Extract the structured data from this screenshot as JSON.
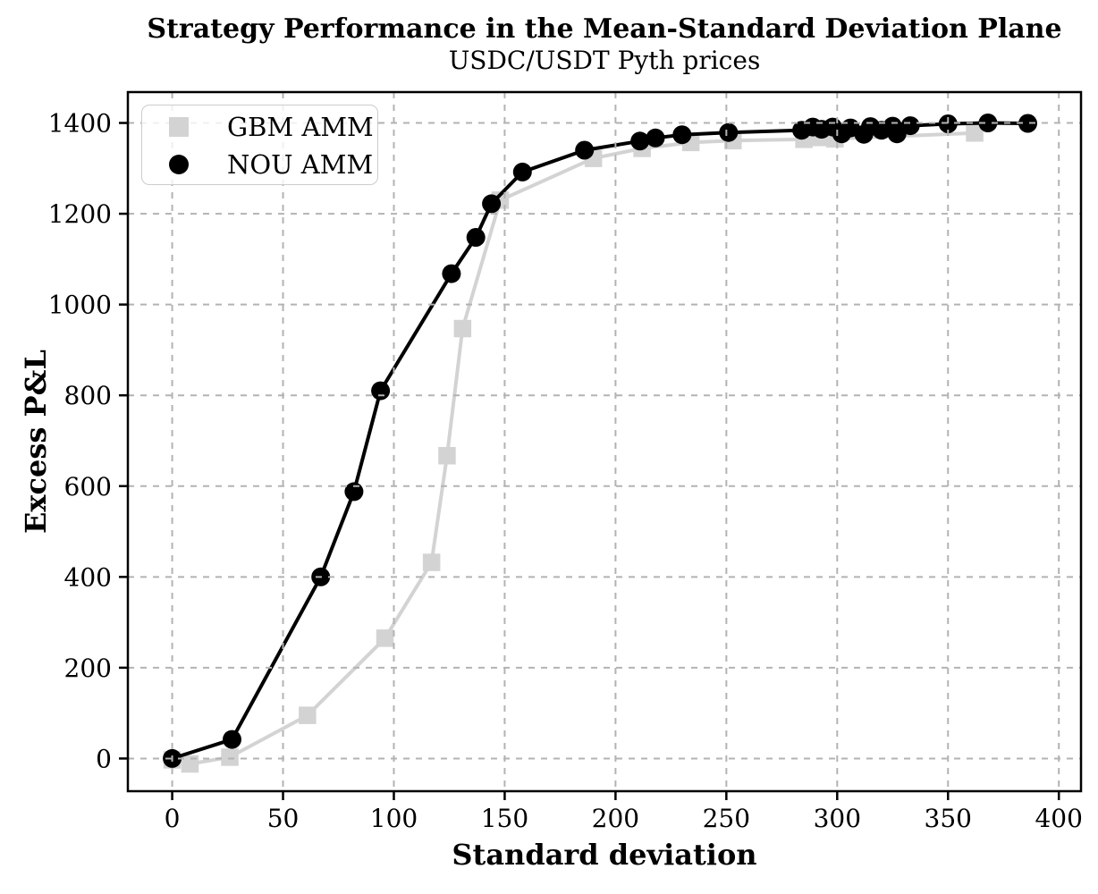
{
  "chart_data": {
    "type": "line",
    "title": "Strategy Performance in the Mean-Standard Deviation Plane",
    "subtitle": "USDC/USDT Pyth prices",
    "xlabel": "Standard deviation",
    "ylabel": "Excess P&L",
    "xlim": [
      -20,
      410
    ],
    "ylim": [
      -72,
      1468
    ],
    "x_ticks": [
      0,
      50,
      100,
      150,
      200,
      250,
      300,
      350,
      400
    ],
    "y_ticks": [
      0,
      200,
      400,
      600,
      800,
      1000,
      1200,
      1400
    ],
    "grid": true,
    "grid_style": "dashed",
    "grid_color": "#b3b3b3",
    "legend_position": "upper left",
    "series": [
      {
        "name": "GBM AMM",
        "marker": "square",
        "color": "#d3d3d3",
        "points": [
          [
            0,
            -3
          ],
          [
            8,
            -12
          ],
          [
            26,
            3
          ],
          [
            61,
            95
          ],
          [
            96,
            265
          ],
          [
            117,
            432
          ],
          [
            124,
            667
          ],
          [
            131,
            947
          ],
          [
            148,
            1230
          ],
          [
            190,
            1322
          ],
          [
            212,
            1344
          ],
          [
            234,
            1357
          ],
          [
            253,
            1361
          ],
          [
            285,
            1364
          ],
          [
            292,
            1368
          ],
          [
            299,
            1365
          ],
          [
            362,
            1378
          ]
        ]
      },
      {
        "name": "NOU AMM",
        "marker": "circle",
        "color": "#000000",
        "points": [
          [
            0,
            0
          ],
          [
            27,
            42
          ],
          [
            67,
            400
          ],
          [
            82,
            588
          ],
          [
            94,
            810
          ],
          [
            126,
            1068
          ],
          [
            137,
            1148
          ],
          [
            144,
            1222
          ],
          [
            158,
            1292
          ],
          [
            186,
            1340
          ],
          [
            211,
            1360
          ],
          [
            218,
            1367
          ],
          [
            230,
            1374
          ],
          [
            251,
            1379
          ],
          [
            284,
            1384
          ],
          [
            289,
            1391
          ],
          [
            293,
            1386
          ],
          [
            298,
            1391
          ],
          [
            302,
            1376
          ],
          [
            306,
            1389
          ],
          [
            312,
            1375
          ],
          [
            315,
            1392
          ],
          [
            320,
            1384
          ],
          [
            325,
            1393
          ],
          [
            327,
            1376
          ],
          [
            333,
            1394
          ],
          [
            350,
            1398
          ],
          [
            368,
            1400
          ],
          [
            386,
            1399
          ]
        ]
      }
    ]
  }
}
